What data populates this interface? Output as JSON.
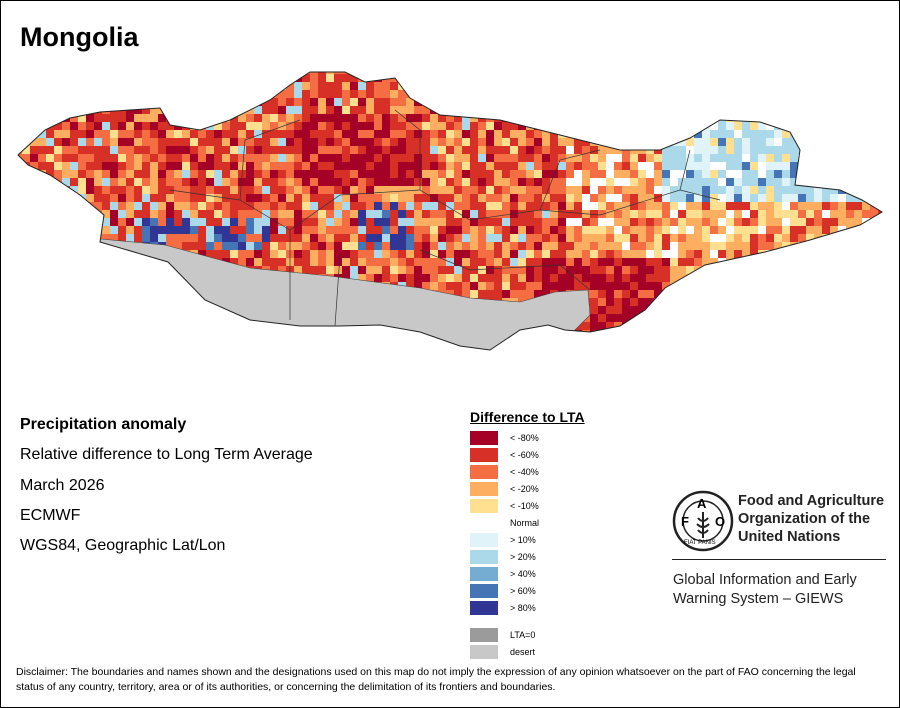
{
  "title": "Mongolia",
  "info": {
    "heading": "Precipitation anomaly",
    "subtitle": "Relative difference to Long Term Average",
    "period": "March 2026",
    "source": "ECMWF",
    "projection": "WGS84, Geographic Lat/Lon"
  },
  "legend": {
    "title": "Difference to LTA",
    "items": [
      {
        "label": "< -80%",
        "color": "#a50026"
      },
      {
        "label": "< -60%",
        "color": "#d73027"
      },
      {
        "label": "< -40%",
        "color": "#f46d43"
      },
      {
        "label": "< -20%",
        "color": "#fdae61"
      },
      {
        "label": "< -10%",
        "color": "#fee090"
      },
      {
        "label": "Normal",
        "color": "#ffffff"
      },
      {
        "label": "> 10%",
        "color": "#e0f3f8"
      },
      {
        "label": "> 20%",
        "color": "#abd9e9"
      },
      {
        "label": "> 40%",
        "color": "#74add1"
      },
      {
        "label": "> 60%",
        "color": "#4575b4"
      },
      {
        "label": "> 80%",
        "color": "#313695"
      }
    ],
    "extra": [
      {
        "label": "LTA=0",
        "color": "#9b9b9b"
      },
      {
        "label": "desert",
        "color": "#c8c8c8"
      }
    ]
  },
  "org": {
    "name_line1": "Food and Agriculture",
    "name_line2": "Organization of the",
    "name_line3": "United Nations",
    "giews_line1": "Global Information and Early",
    "giews_line2": "Warning System – GIEWS",
    "logo_text": "FAO FIAT PANIS"
  },
  "disclaimer": "Disclaimer: The boundaries and names shown and the designations used on this map do not imply the expression of any opinion whatsoever on the part of FAO concerning the legal status of any country, territory, area or of its authorities, or concerning the delimitation of its frontiers and boundaries."
}
